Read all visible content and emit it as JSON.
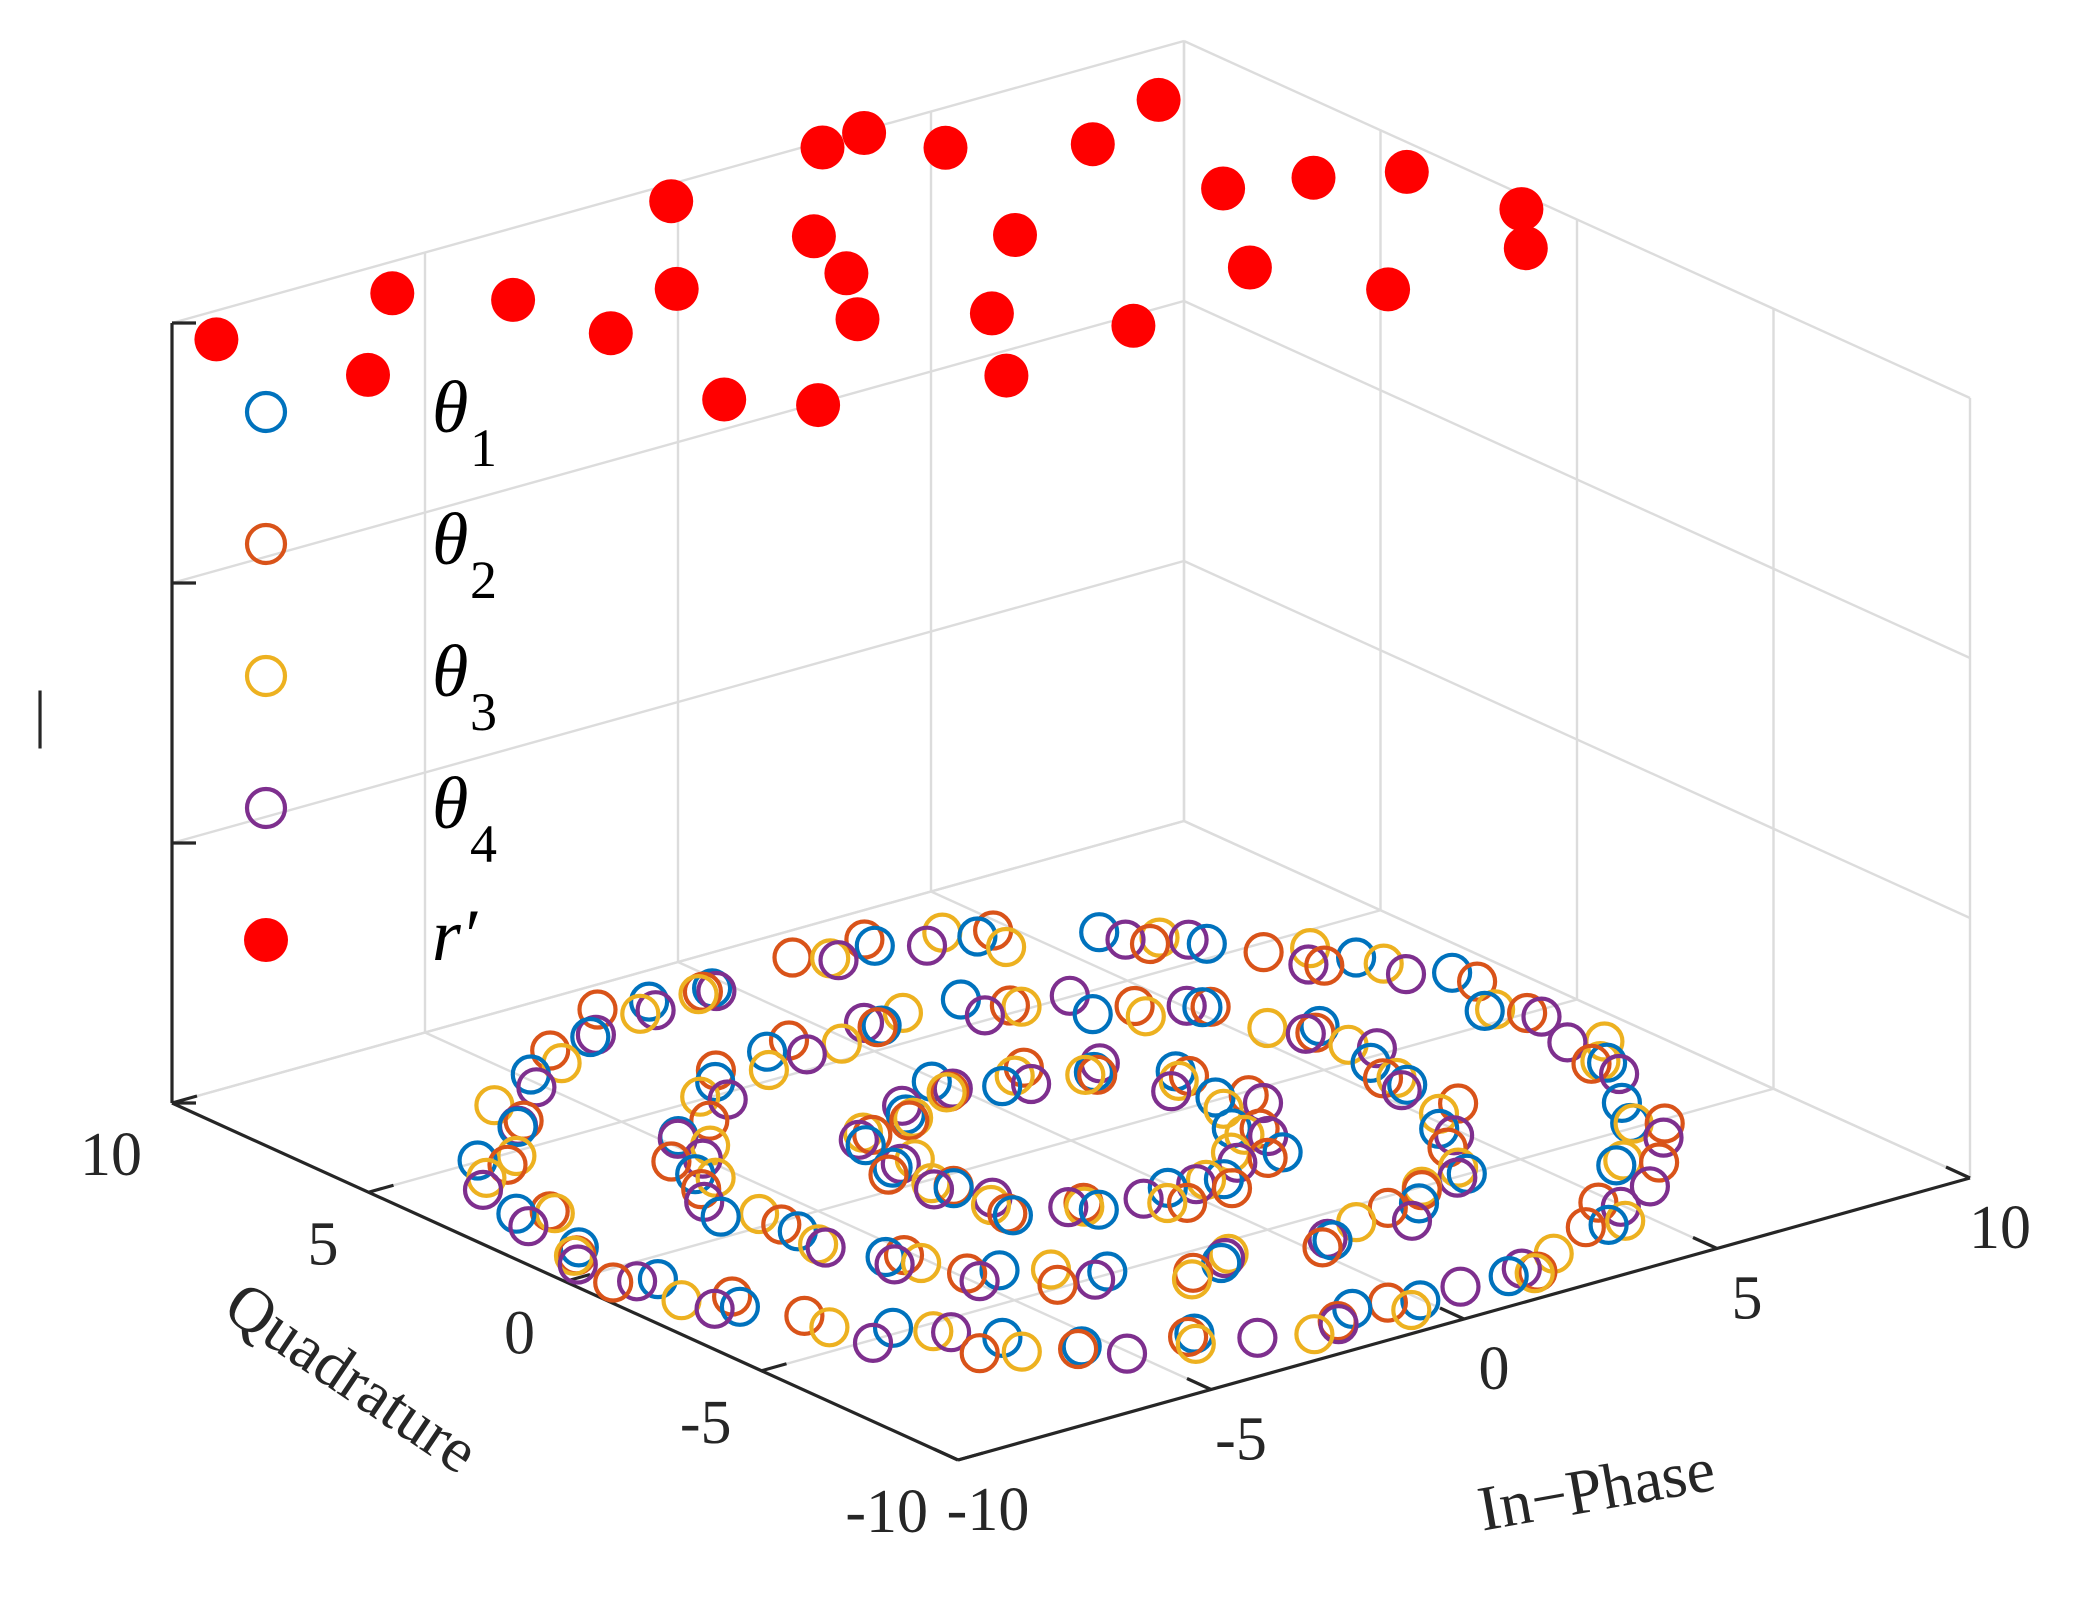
{
  "chart_data": {
    "type": "scatter3d",
    "title": "",
    "xlabel": "In−Phase",
    "ylabel": "Quadrature",
    "zlabel": "|",
    "xlim": [
      -10,
      10
    ],
    "ylim": [
      -10,
      10
    ],
    "zlim": [
      0,
      3
    ],
    "xticks": [
      "-10",
      "-5",
      "0",
      "5",
      "10"
    ],
    "yticks": [
      "-10",
      "-5",
      "0",
      "5",
      "10"
    ],
    "grid": true,
    "legend_position": "top-left",
    "colors": {
      "theta1": "#0072BD",
      "theta2": "#D95319",
      "theta3": "#EDB120",
      "theta4": "#7E2F8E",
      "r": "#FF0000",
      "axis": "#262626",
      "grid": "#DCDCDC"
    },
    "legend": [
      {
        "name": "θ",
        "sub": "1",
        "series": "theta1"
      },
      {
        "name": "θ",
        "sub": "2",
        "series": "theta2"
      },
      {
        "name": "θ",
        "sub": "3",
        "series": "theta3"
      },
      {
        "name": "θ",
        "sub": "4",
        "series": "theta4"
      },
      {
        "name": "r′",
        "sub": "",
        "series": "r"
      }
    ],
    "series": [
      {
        "name": "theta1",
        "marker": "open-circle",
        "z": 0,
        "radii": [
          3.0,
          6.0,
          9.0
        ],
        "counts": [
          15,
          21,
          29
        ],
        "phase": 0.0,
        "jitter": 0.45
      },
      {
        "name": "theta2",
        "marker": "open-circle",
        "z": 0,
        "radii": [
          3.0,
          6.0,
          9.0
        ],
        "counts": [
          15,
          21,
          29
        ],
        "phase": 0.8,
        "jitter": 0.45
      },
      {
        "name": "theta3",
        "marker": "open-circle",
        "z": 0,
        "radii": [
          3.0,
          6.0,
          9.0
        ],
        "counts": [
          15,
          21,
          29
        ],
        "phase": 1.6,
        "jitter": 0.45
      },
      {
        "name": "theta4",
        "marker": "open-circle",
        "z": 0,
        "radii": [
          3.0,
          6.0,
          9.0
        ],
        "counts": [
          15,
          21,
          29
        ],
        "phase": 2.4,
        "jitter": 0.45
      },
      {
        "name": "r",
        "marker": "filled-circle",
        "z": 3,
        "points": [
          [
            -9.9,
            9.0
          ],
          [
            -9.0,
            6.3
          ],
          [
            -6.5,
            8.9
          ],
          [
            -5.2,
            7.5
          ],
          [
            -4.9,
            5.4
          ],
          [
            -5.3,
            2.0
          ],
          [
            -4.3,
            0.9
          ],
          [
            -2.9,
            6.3
          ],
          [
            -1.5,
            3.5
          ],
          [
            -0.4,
            5.2
          ],
          [
            0.3,
            2.4
          ],
          [
            0.2,
            6.8
          ],
          [
            -0.6,
            9.4
          ],
          [
            2.7,
            9.8
          ],
          [
            3.6,
            9.9
          ],
          [
            4.2,
            8.6
          ],
          [
            2.7,
            4.9
          ],
          [
            4.7,
            1.5
          ],
          [
            1.7,
            0.6
          ],
          [
            5.8,
            -0.6
          ],
          [
            6.1,
            7.3
          ],
          [
            8.1,
            8.2
          ],
          [
            6.5,
            4.5
          ],
          [
            7.9,
            4.0
          ],
          [
            9.2,
            3.3
          ],
          [
            8.6,
            -0.5
          ],
          [
            9.6,
            0.9
          ],
          [
            -1.2,
            0.1
          ]
        ]
      }
    ]
  }
}
